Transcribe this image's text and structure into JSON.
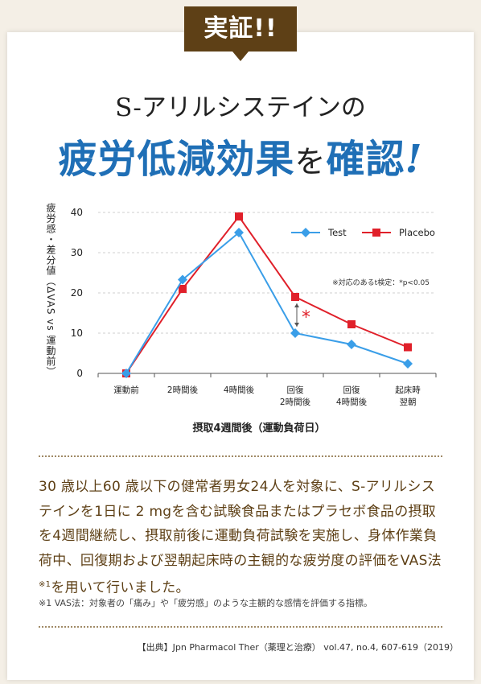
{
  "badge": "実証!!",
  "title_line1": "S-アリルシステインの",
  "title_line2_main": "疲労低減効果",
  "title_line2_particle": "を",
  "title_line2_end": "確認",
  "title_line2_excl": "!",
  "description": "30 歳以上60 歳以下の健常者男女24人を対象に、S-アリルシステインを1日に 2 mgを含む試験食品またはプラセボ食品の摂取を4週間継続し、摂取前後に運動負荷試験を実施し、身体作業負荷中、回復期および翌朝起床時の主観的な疲労度の評価をVAS法",
  "description_sup": "※1",
  "description_end": "を用いて行いました。",
  "footnote": "※1 VAS法：対象者の「痛み」や「疲労感」のような主観的な感情を評価する指標。",
  "source": "【出典】Jpn Pharmacol Ther（薬理と治療） vol.47, no.4, 607-619（2019）",
  "colors": {
    "accent_brown": "#5e4016",
    "title_blue": "#1f6fb6",
    "test": "#3a9ee8",
    "placebo": "#e0202a"
  },
  "chart_data": {
    "type": "line",
    "title": "",
    "ylabel": "疲労感・差分値（ΔVAS vs 運動前）",
    "xlabel": "摂取4週間後（運動負荷日）",
    "ylim": [
      0,
      40
    ],
    "yticks": [
      0,
      10,
      20,
      30,
      40
    ],
    "grid": true,
    "legend_position": "top-right",
    "categories": [
      [
        "運動前"
      ],
      [
        "2時間後"
      ],
      [
        "4時間後"
      ],
      [
        "回復",
        "2時間後"
      ],
      [
        "回復",
        "4時間後"
      ],
      [
        "起床時",
        "翌朝"
      ]
    ],
    "series": [
      {
        "name": "Test",
        "values": [
          0,
          23.3,
          35,
          10,
          7.2,
          2.4
        ],
        "marker": "diamond",
        "color": "#3a9ee8"
      },
      {
        "name": "Placebo",
        "values": [
          0,
          21,
          39,
          19,
          12.2,
          6.5
        ],
        "marker": "square",
        "color": "#e0202a"
      }
    ],
    "annotations": {
      "significance_note": "※対応のあるt検定：*p<0.05",
      "significance_mark": "*",
      "significance_category": 3
    }
  }
}
